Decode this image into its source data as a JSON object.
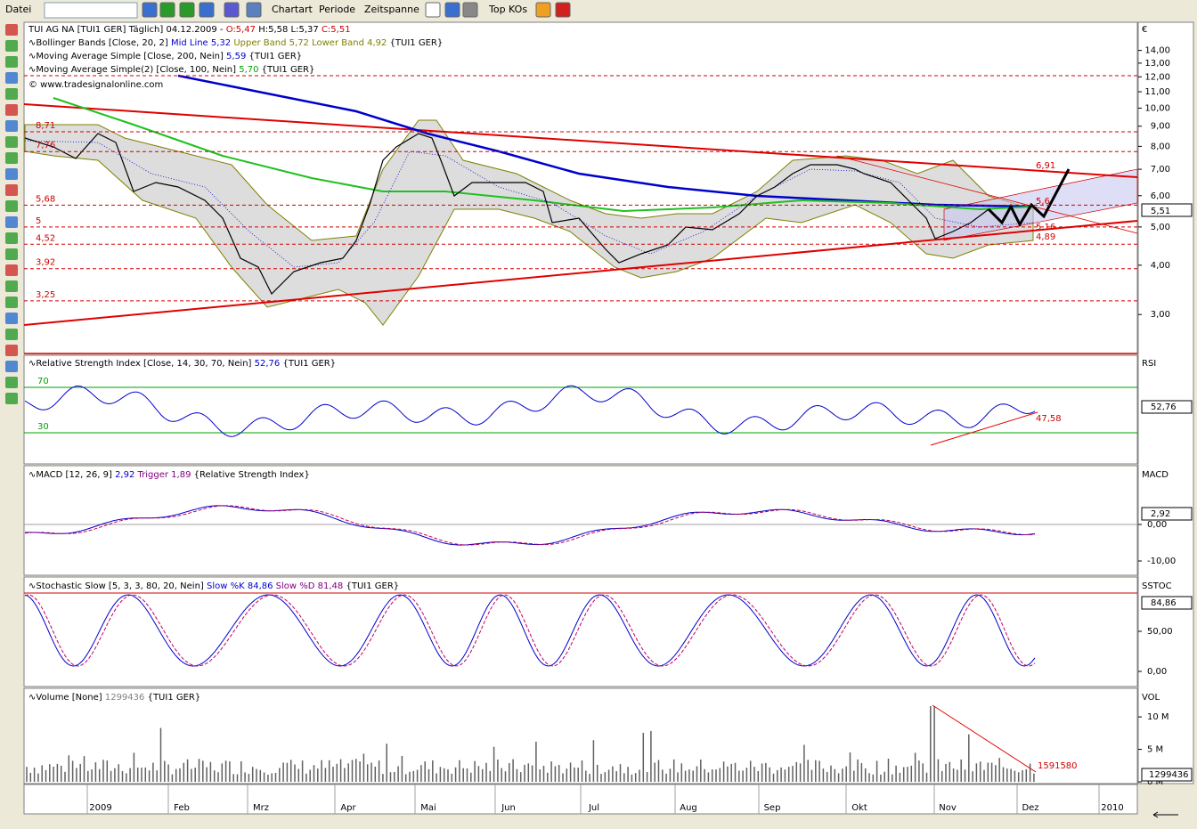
{
  "toolbar": {
    "file": "Datei",
    "menus": [
      "Chartart",
      "Periode",
      "Zeitspanne"
    ],
    "topkos": "Top KOs"
  },
  "price_panel": {
    "title": "TUI AG NA [TUI1 GER]  Täglich] 04.12.2009 -",
    "open": "O:5,47",
    "high_low": "H:5,58 L:5,37",
    "close": "C:5,51",
    "bollinger": {
      "name": "Bollinger Bands [Close, 20, 2]",
      "mid": "Mid Line 5,32",
      "upper": "Upper Band 5,72",
      "lower": "Lower Band 4,92",
      "source": "{TUI1 GER}"
    },
    "ma200": {
      "name": "Moving Average Simple [Close, 200, Nein]",
      "value": "5,59",
      "source": "{TUI1 GER}"
    },
    "ma100": {
      "name": "Moving Average Simple(2) [Close, 100, Nein]",
      "value": "5,70",
      "source": "{TUI1 GER}"
    },
    "copyright": "© www.tradesignalonline.com",
    "currency": "€",
    "last_price": "5,51",
    "log_scale": true,
    "ylim": [
      2.39,
      16.5
    ],
    "yticks": [
      {
        "value": 14,
        "label": "14,00"
      },
      {
        "value": 13,
        "label": "13,00"
      },
      {
        "value": 12,
        "label": "12,00"
      },
      {
        "value": 11,
        "label": "11,00"
      },
      {
        "value": 10,
        "label": "10,00"
      },
      {
        "value": 9,
        "label": "9,00"
      },
      {
        "value": 8,
        "label": "8,00"
      },
      {
        "value": 7,
        "label": "7,00"
      },
      {
        "value": 6,
        "label": "6,00"
      },
      {
        "value": 5,
        "label": "5,00"
      },
      {
        "value": 4,
        "label": "4,00"
      },
      {
        "value": 3,
        "label": "3,00"
      }
    ],
    "levels": [
      {
        "value": 8.71,
        "label": "8,71"
      },
      {
        "value": 7.76,
        "label": "7,76"
      },
      {
        "value": 5.68,
        "label": "5,68"
      },
      5,
      {
        "value": 4.52,
        "label": "4,52"
      },
      {
        "value": 3.92,
        "label": "3,92"
      },
      {
        "value": 3.25,
        "label": "3,25"
      }
    ],
    "annotations": [
      "6,91",
      "5,6",
      "5,16",
      "4,89"
    ]
  },
  "rsi": {
    "name": "Relative Strength Index [Close, 14, 30, 70, Nein]",
    "value": "52,76",
    "source": "{TUI1 GER}",
    "axis_label": "RSI",
    "ylim": [
      2.5,
      98.2
    ],
    "levels": [
      70,
      30
    ],
    "annotation": "47,58"
  },
  "macd": {
    "name": "MACD [12, 26, 9]",
    "value": "2,92",
    "trigger": "Trigger 1,89",
    "source": "{Relative Strength Index}",
    "axis_label": "MACD",
    "ylim": [
      -13.9,
      16.1
    ],
    "yticks": [
      {
        "value": 0,
        "label": "0,00"
      },
      {
        "value": -10,
        "label": "-10,00"
      }
    ]
  },
  "stochastic": {
    "name": "Stochastic Slow [5, 3, 3, 80, 20, Nein]",
    "k": "Slow %K 84,86",
    "d": "Slow %D 81,48",
    "source": "{TUI1 GER}",
    "axis_label": "SSTOC",
    "value": "84,86",
    "ylim": [
      -18.9,
      117.8
    ],
    "yticks": [
      {
        "value": 50,
        "label": "50,00"
      },
      {
        "value": 0,
        "label": "0,00"
      }
    ]
  },
  "volume": {
    "name": "Volume [None]",
    "value": "1299436",
    "source": "{TUI1 GER}",
    "axis_label": "VOL",
    "annotation": "1591580",
    "ylim": [
      -270000,
      14400000
    ],
    "yticks": [
      {
        "value": 10000000,
        "label": "10 M"
      },
      {
        "value": 5000000,
        "label": "5 M"
      },
      {
        "value": 0,
        "label": "0 M"
      }
    ]
  },
  "x_axis": [
    "2009",
    "Feb",
    "Mrz",
    "Apr",
    "Mai",
    "Jun",
    "Jul",
    "Aug",
    "Sep",
    "Okt",
    "Nov",
    "Dez",
    "2010"
  ]
}
